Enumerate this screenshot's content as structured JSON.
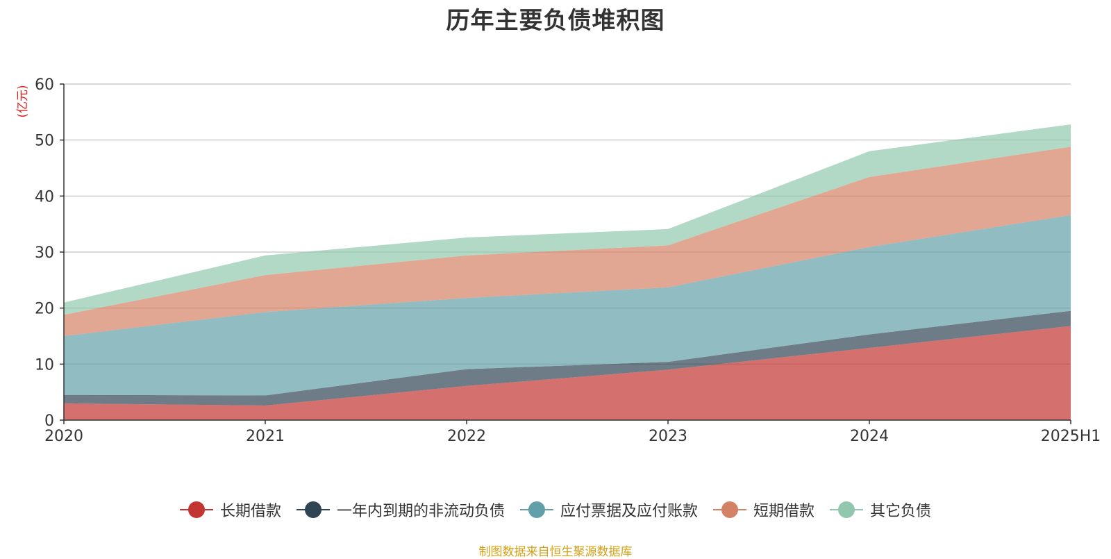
{
  "chart_data": {
    "type": "area",
    "stacked": true,
    "title": "历年主要负债堆积图",
    "unit_label": "(亿元)",
    "x": [
      "2020",
      "2021",
      "2022",
      "2023",
      "2024",
      "2025H1"
    ],
    "ylim": [
      0,
      60
    ],
    "yticks": [
      0,
      10,
      20,
      30,
      40,
      50,
      60
    ],
    "grid": true,
    "legend_position": "bottom",
    "series": [
      {
        "name": "长期借款",
        "color": "#c23531",
        "values": [
          3.0,
          2.6,
          6.1,
          9.0,
          12.9,
          16.8
        ]
      },
      {
        "name": "一年内到期的非流动负债",
        "color": "#2f4554",
        "values": [
          1.5,
          1.8,
          3.0,
          1.4,
          2.4,
          2.7
        ]
      },
      {
        "name": "应付票据及应付账款",
        "color": "#61a0a8",
        "values": [
          10.5,
          14.9,
          12.7,
          13.3,
          15.6,
          17.1
        ]
      },
      {
        "name": "短期借款",
        "color": "#d48265",
        "values": [
          3.8,
          6.6,
          7.6,
          7.5,
          12.5,
          12.2
        ]
      },
      {
        "name": "其它负债",
        "color": "#91c7ae",
        "values": [
          2.2,
          3.5,
          3.2,
          2.9,
          4.6,
          4.0
        ]
      }
    ]
  },
  "footer": "制图数据来自恒生聚源数据库"
}
